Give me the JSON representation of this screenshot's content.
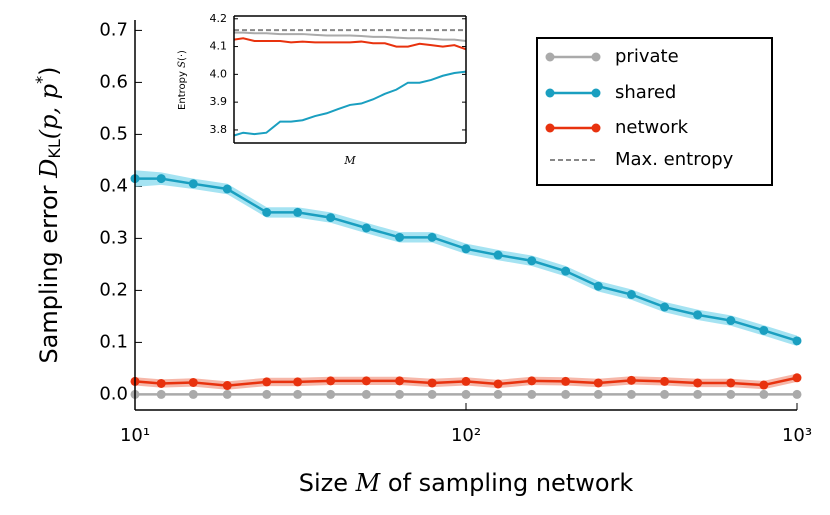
{
  "chart_data": [
    {
      "type": "line",
      "xscale": "log",
      "xlabel": [
        "Size ",
        "M",
        " of sampling network"
      ],
      "ylabel": [
        "Sampling error ",
        "D",
        "KL",
        "(p, p",
        "*",
        ")"
      ],
      "x": [
        10,
        12,
        15,
        19,
        25,
        31,
        39,
        50,
        63,
        79,
        100,
        125,
        158,
        200,
        251,
        316,
        398,
        501,
        631,
        794,
        1000
      ],
      "xlim": [
        10,
        1000
      ],
      "xticks": [
        {
          "value": 10,
          "label": "10¹"
        },
        {
          "value": 100,
          "label": "10²"
        },
        {
          "value": 1000,
          "label": "10³"
        }
      ],
      "ylim": [
        -0.03,
        0.72
      ],
      "yticks": [
        {
          "value": 0,
          "label": "0.0"
        },
        0.1,
        0.2,
        0.3,
        0.4,
        0.5,
        0.6,
        0.7
      ],
      "legend": "upper right",
      "series": [
        {
          "name": "private",
          "color": "#aaaaaa",
          "band_color": "#dddddd",
          "values": [
            0,
            0,
            0,
            0,
            0,
            0,
            0,
            0,
            0,
            0,
            0,
            0,
            0,
            0,
            0,
            0,
            0,
            0,
            0,
            0,
            0
          ],
          "errors": [
            0.002,
            0.002,
            0.002,
            0.002,
            0.002,
            0.002,
            0.002,
            0.002,
            0.002,
            0.002,
            0.002,
            0.002,
            0.002,
            0.002,
            0.002,
            0.002,
            0.002,
            0.002,
            0.002,
            0.002,
            0.002
          ]
        },
        {
          "name": "shared",
          "color": "#1a9fc0",
          "band_color": "#8fdcef",
          "values": [
            0.415,
            0.415,
            0.405,
            0.395,
            0.35,
            0.35,
            0.34,
            0.32,
            0.302,
            0.302,
            0.28,
            0.268,
            0.257,
            0.237,
            0.208,
            0.192,
            0.168,
            0.153,
            0.142,
            0.123,
            0.103
          ],
          "errors": [
            0.016,
            0.012,
            0.01,
            0.01,
            0.01,
            0.01,
            0.01,
            0.01,
            0.01,
            0.01,
            0.01,
            0.01,
            0.01,
            0.01,
            0.01,
            0.01,
            0.01,
            0.01,
            0.01,
            0.01,
            0.01
          ]
        },
        {
          "name": "network",
          "color": "#e8320e",
          "band_color": "#f4a594",
          "values": [
            0.025,
            0.021,
            0.023,
            0.017,
            0.024,
            0.024,
            0.026,
            0.026,
            0.026,
            0.022,
            0.025,
            0.02,
            0.026,
            0.025,
            0.022,
            0.027,
            0.025,
            0.022,
            0.022,
            0.018,
            0.032
          ],
          "errors": [
            0.008,
            0.008,
            0.008,
            0.008,
            0.008,
            0.008,
            0.008,
            0.008,
            0.008,
            0.008,
            0.008,
            0.008,
            0.008,
            0.008,
            0.008,
            0.008,
            0.008,
            0.008,
            0.008,
            0.008,
            0.008
          ]
        }
      ]
    },
    {
      "type": "line",
      "xscale": "log",
      "xlabel": [
        "M"
      ],
      "ylabel": [
        "Entropy ",
        "S",
        "(·)"
      ],
      "x": [
        10,
        12,
        15,
        19,
        25,
        31,
        39,
        50,
        63,
        79,
        100,
        125,
        158,
        200,
        251,
        316,
        398,
        501,
        631,
        794,
        1000
      ],
      "xlim": [
        10,
        1000
      ],
      "ylim": [
        3.753,
        4.21
      ],
      "yticks": [
        3.8,
        3.9,
        {
          "value": 4,
          "label": "4.0"
        },
        4.1,
        4.2
      ],
      "hline": {
        "name": "Max. entropy",
        "value": 4.159,
        "color": "#888888"
      },
      "series": [
        {
          "color": "#aaaaaa",
          "values": [
            4.15,
            4.15,
            4.148,
            4.148,
            4.145,
            4.145,
            4.145,
            4.142,
            4.14,
            4.14,
            4.14,
            4.138,
            4.135,
            4.135,
            4.132,
            4.13,
            4.13,
            4.128,
            4.125,
            4.125,
            4.12
          ]
        },
        {
          "color": "#1a9fc0",
          "values": [
            3.78,
            3.79,
            3.785,
            3.79,
            3.83,
            3.83,
            3.835,
            3.85,
            3.86,
            3.875,
            3.89,
            3.895,
            3.91,
            3.93,
            3.945,
            3.97,
            3.97,
            3.98,
            3.995,
            4.005,
            4.01
          ]
        },
        {
          "color": "#e8320e",
          "values": [
            4.125,
            4.13,
            4.12,
            4.12,
            4.12,
            4.115,
            4.118,
            4.115,
            4.115,
            4.115,
            4.115,
            4.118,
            4.112,
            4.112,
            4.1,
            4.1,
            4.11,
            4.105,
            4.1,
            4.105,
            4.09
          ]
        }
      ]
    }
  ]
}
